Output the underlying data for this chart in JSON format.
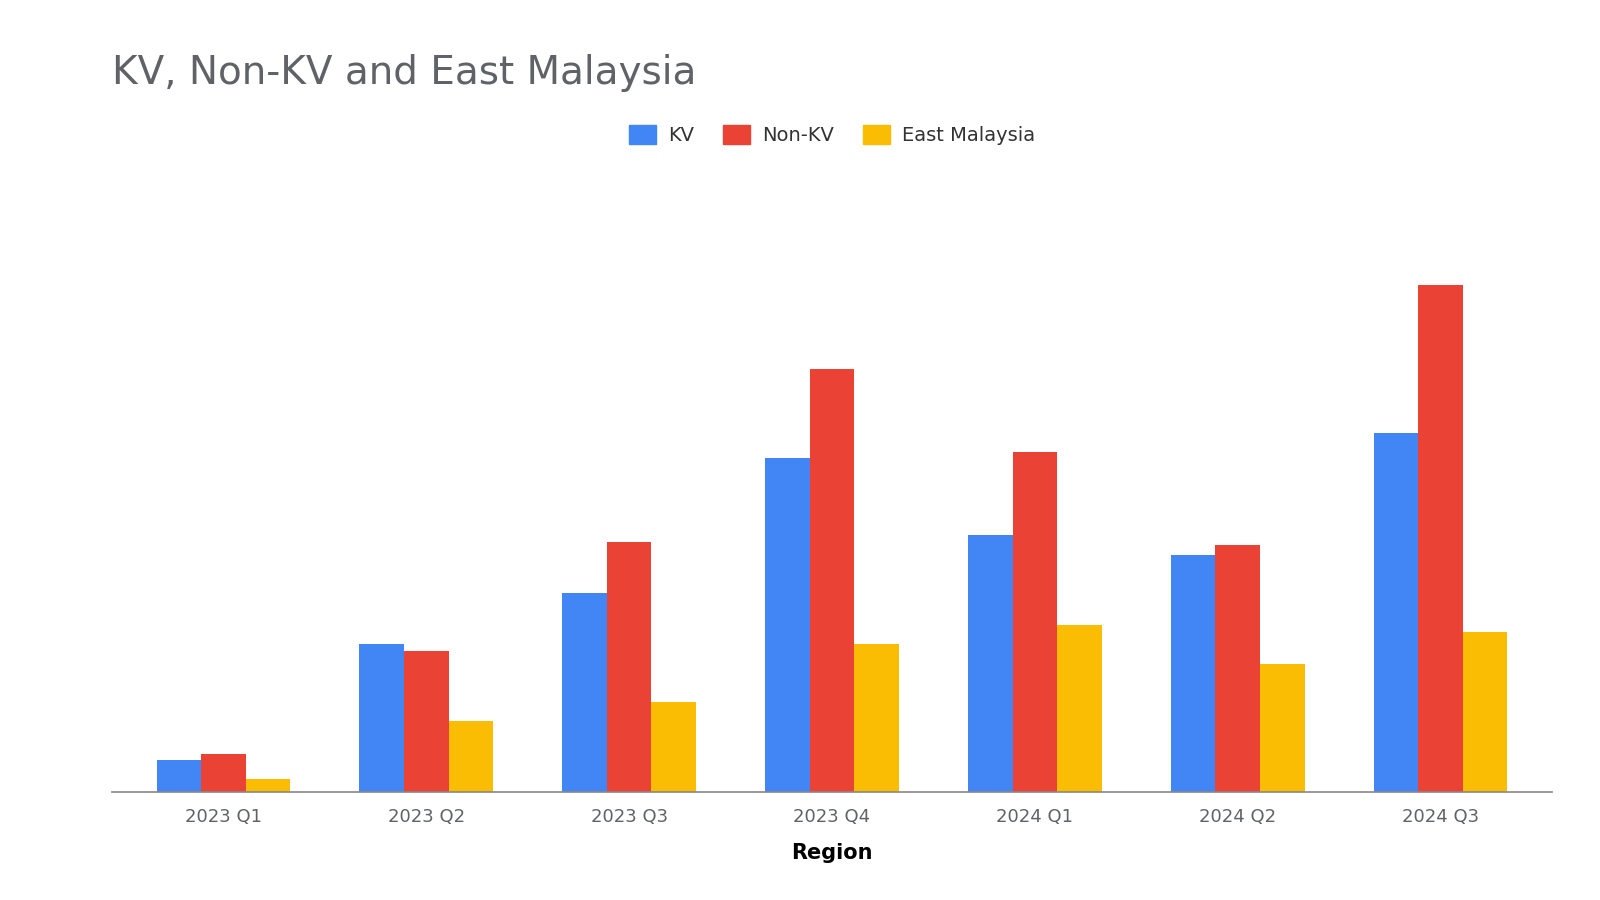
{
  "title": "KV, Non-KV and East Malaysia",
  "xlabel": "Region",
  "categories": [
    "2023 Q1",
    "2023 Q2",
    "2023 Q3",
    "2023 Q4",
    "2024 Q1",
    "2024 Q2",
    "2024 Q3"
  ],
  "series": {
    "KV": [
      50,
      230,
      310,
      520,
      400,
      370,
      560
    ],
    "Non-KV": [
      60,
      220,
      390,
      660,
      530,
      385,
      790
    ],
    "East Malaysia": [
      20,
      110,
      140,
      230,
      260,
      200,
      250
    ]
  },
  "colors": {
    "KV": "#4285F4",
    "Non-KV": "#EA4335",
    "East Malaysia": "#FBBC04"
  },
  "legend_labels": [
    "KV",
    "Non-KV",
    "East Malaysia"
  ],
  "background_color": "#ffffff",
  "grid_color": "#cccccc",
  "title_fontsize": 28,
  "xlabel_fontsize": 15,
  "tick_fontsize": 13,
  "legend_fontsize": 14,
  "bar_width": 0.22,
  "ylim": [
    0,
    870
  ],
  "title_color": "#5f6368",
  "tick_color": "#5f6368",
  "xlabel_color": "#000000"
}
